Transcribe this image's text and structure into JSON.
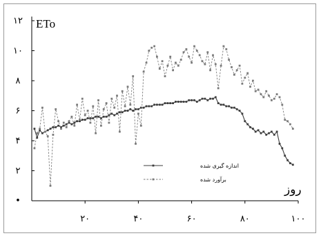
{
  "chart_data": {
    "type": "line",
    "title": "",
    "ylabel": "ETo",
    "xlabel": "روز",
    "xlim": [
      0,
      100
    ],
    "ylim": [
      0,
      12
    ],
    "x_tick_labels": [
      "۲۰",
      "۴۰",
      "۶۰",
      "۸۰",
      "۱۰۰"
    ],
    "y_tick_labels": [
      "۲",
      "۴",
      "۶",
      "۸",
      "۱۰",
      "۱۲"
    ],
    "y_zero_label": "•",
    "legend_position": "center-left",
    "colors": {
      "axis": "#000000",
      "frame": "#9a9a9a",
      "measured": "#3c3c3c",
      "estimated": "#7a7a7a"
    },
    "series": [
      {
        "name": "اندازه گیری شده",
        "style": "solid",
        "x": [
          1,
          2,
          3,
          4,
          5,
          6,
          7,
          8,
          9,
          10,
          11,
          12,
          13,
          14,
          15,
          16,
          17,
          18,
          19,
          20,
          21,
          22,
          23,
          24,
          25,
          26,
          27,
          28,
          29,
          30,
          31,
          32,
          33,
          34,
          35,
          36,
          37,
          38,
          39,
          40,
          41,
          42,
          43,
          44,
          45,
          46,
          47,
          48,
          49,
          50,
          51,
          52,
          53,
          54,
          55,
          56,
          57,
          58,
          59,
          60,
          61,
          62,
          63,
          64,
          65,
          66,
          67,
          68,
          69,
          70,
          71,
          72,
          73,
          74,
          75,
          76,
          77,
          78,
          79,
          80,
          81,
          82,
          83,
          84,
          85,
          86,
          87,
          88,
          89,
          90,
          91,
          92,
          93,
          94,
          95,
          96,
          97,
          98
        ],
        "y": [
          4.8,
          4.2,
          4.7,
          4.5,
          4.6,
          4.7,
          4.8,
          4.9,
          4.9,
          5.0,
          4.9,
          5.0,
          5.1,
          5.2,
          5.1,
          5.2,
          5.3,
          5.3,
          5.4,
          5.4,
          5.5,
          5.5,
          5.5,
          5.6,
          5.6,
          5.5,
          5.6,
          5.6,
          5.7,
          5.8,
          5.7,
          5.8,
          5.9,
          5.9,
          6.0,
          6.0,
          6.1,
          6.0,
          6.1,
          6.1,
          6.2,
          6.2,
          6.3,
          6.3,
          6.3,
          6.4,
          6.4,
          6.4,
          6.4,
          6.5,
          6.5,
          6.5,
          6.5,
          6.6,
          6.6,
          6.6,
          6.6,
          6.6,
          6.7,
          6.7,
          6.7,
          6.6,
          6.7,
          6.8,
          6.8,
          6.7,
          6.8,
          6.8,
          6.9,
          6.5,
          6.4,
          6.4,
          6.3,
          6.3,
          6.2,
          6.2,
          6.1,
          6.0,
          5.8,
          5.3,
          5.1,
          4.9,
          4.8,
          4.6,
          4.7,
          4.5,
          4.6,
          4.4,
          4.5,
          4.6,
          4.4,
          4.6,
          3.8,
          3.5,
          3.0,
          2.7,
          2.5,
          2.4
        ]
      },
      {
        "name": "برآورد شده",
        "style": "dashed",
        "x": [
          1,
          2,
          3,
          4,
          5,
          6,
          7,
          8,
          9,
          10,
          11,
          12,
          13,
          14,
          15,
          16,
          17,
          18,
          19,
          20,
          21,
          22,
          23,
          24,
          25,
          26,
          27,
          28,
          29,
          30,
          31,
          32,
          33,
          34,
          35,
          36,
          37,
          38,
          39,
          40,
          41,
          42,
          43,
          44,
          45,
          46,
          47,
          48,
          49,
          50,
          51,
          52,
          53,
          54,
          55,
          56,
          57,
          58,
          59,
          60,
          61,
          62,
          63,
          64,
          65,
          66,
          67,
          68,
          69,
          70,
          71,
          72,
          73,
          74,
          75,
          76,
          77,
          78,
          79,
          80,
          81,
          82,
          83,
          84,
          85,
          86,
          87,
          88,
          89,
          90,
          91,
          92,
          93,
          94,
          95,
          96,
          97,
          98
        ],
        "y": [
          3.5,
          4.5,
          4.8,
          6.2,
          4.6,
          4.3,
          1.0,
          4.4,
          6.1,
          5.3,
          4.8,
          5.2,
          4.9,
          5.3,
          5.6,
          5.0,
          6.4,
          5.4,
          6.8,
          5.7,
          6.0,
          5.2,
          6.3,
          4.5,
          6.7,
          5.0,
          6.1,
          6.5,
          5.2,
          6.8,
          6.2,
          7.0,
          4.6,
          7.3,
          6.3,
          7.6,
          6.4,
          8.3,
          3.8,
          5.8,
          5.0,
          8.6,
          9.2,
          10.0,
          10.2,
          10.3,
          9.6,
          8.8,
          9.3,
          8.3,
          9.0,
          9.6,
          8.7,
          9.2,
          9.0,
          9.4,
          9.9,
          10.1,
          9.6,
          9.2,
          10.3,
          10.0,
          9.7,
          9.3,
          9.1,
          9.9,
          8.7,
          9.7,
          9.1,
          7.5,
          9.0,
          10.3,
          10.1,
          9.4,
          8.9,
          8.4,
          8.7,
          9.0,
          7.8,
          8.2,
          8.5,
          7.6,
          8.0,
          7.3,
          7.4,
          7.1,
          6.9,
          7.3,
          7.0,
          6.7,
          6.8,
          7.1,
          6.9,
          6.4,
          5.4,
          5.3,
          5.1,
          4.8
        ]
      }
    ]
  }
}
